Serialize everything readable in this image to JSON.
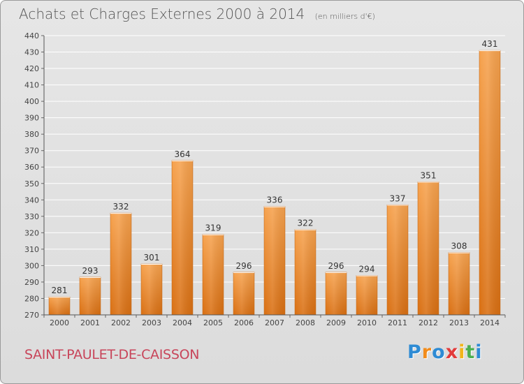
{
  "title": "Achats et Charges Externes 2000 à 2014",
  "subtitle": "(en milliers d'€)",
  "commune": "SAINT-PAULET-DE-CAISSON",
  "logo": {
    "text": "Proxiti",
    "letter_colors": [
      "#2e8bd4",
      "#f28c1b",
      "#2e8bd4",
      "#e23b3b",
      "#f2b51b",
      "#4caf50",
      "#2e8bd4"
    ]
  },
  "colors": {
    "bar_top": "#f6a24e",
    "bar_bottom": "#d96f12",
    "grid": "#ffffff",
    "axis_text": "#444444",
    "commune_text": "#c8455a"
  },
  "chart_data": {
    "type": "bar",
    "title": "Achats et Charges Externes 2000 à 2014",
    "subtitle": "(en milliers d'€)",
    "xlabel": "",
    "ylabel": "",
    "categories": [
      "2000",
      "2001",
      "2002",
      "2003",
      "2004",
      "2005",
      "2006",
      "2007",
      "2008",
      "2009",
      "2010",
      "2011",
      "2012",
      "2013",
      "2014"
    ],
    "values": [
      281,
      293,
      332,
      301,
      364,
      319,
      296,
      336,
      322,
      296,
      294,
      337,
      351,
      308,
      431
    ],
    "ylim": [
      270,
      440
    ],
    "yticks": [
      270,
      280,
      290,
      300,
      310,
      320,
      330,
      340,
      350,
      360,
      370,
      380,
      390,
      400,
      410,
      420,
      430,
      440
    ],
    "grid": true,
    "legend": "none"
  }
}
